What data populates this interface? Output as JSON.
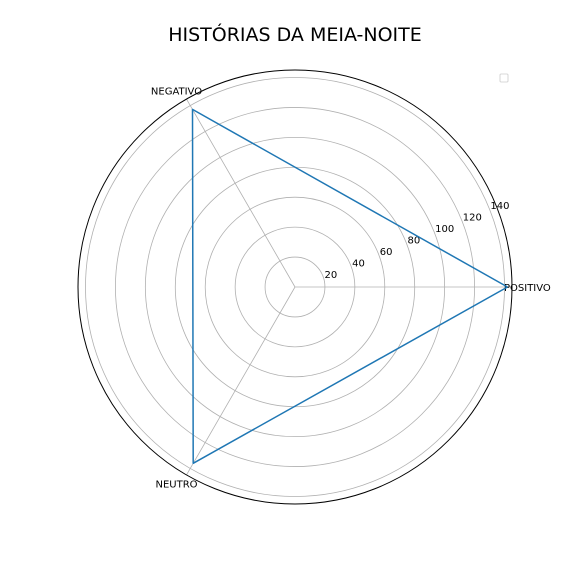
{
  "chart_data": {
    "type": "radar",
    "title": "HISTÓRIAS DA MEIA-NOITE",
    "categories": [
      "POSITIVO",
      "NEGATIVO",
      "NEUTRO"
    ],
    "series": [
      {
        "values": [
          142,
          137,
          136
        ]
      }
    ],
    "r_ticks": [
      "20",
      "40",
      "60",
      "80",
      "100",
      "120",
      "140"
    ],
    "r_lim": [
      0,
      145
    ],
    "grid": true,
    "legend": "top-right",
    "colors": {
      "series": "#1f77b4",
      "grid": "#b0b0b0",
      "frame": "#000000"
    }
  }
}
